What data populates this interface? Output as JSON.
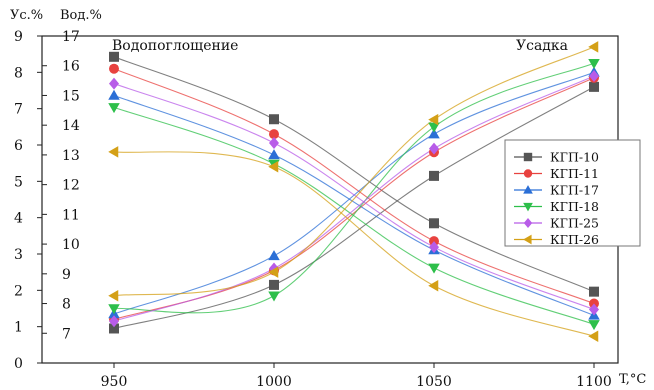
{
  "chart_data": {
    "type": "line",
    "x": [
      950,
      1000,
      1050,
      1100
    ],
    "xlabel": "T,°C",
    "xticks": [
      "950",
      "1000",
      "1050",
      "1100"
    ],
    "xlim": [
      950,
      1100
    ],
    "y_left": {
      "label": "Ус.%",
      "ylim": [
        0,
        9
      ],
      "ticks": [
        "0",
        "1",
        "2",
        "3",
        "4",
        "5",
        "6",
        "7",
        "8",
        "9"
      ]
    },
    "y_right": {
      "label": "Вод.%",
      "ylim": [
        6,
        17
      ],
      "ticks": [
        "7",
        "8",
        "9",
        "10",
        "11",
        "12",
        "13",
        "14",
        "15",
        "16",
        "17"
      ]
    },
    "annotations": {
      "water_absorption": "Водопоглощение",
      "shrinkage": "Усадка"
    },
    "legend_position": "right",
    "series": [
      {
        "name": "КГП-10",
        "color": "#555555",
        "marker": "square",
        "water_absorption": [
          16.3,
          14.2,
          10.7,
          8.4
        ],
        "shrinkage": [
          0.95,
          2.15,
          5.15,
          7.6
        ]
      },
      {
        "name": "КГП-11",
        "color": "#e8423f",
        "marker": "circle",
        "water_absorption": [
          15.9,
          13.7,
          10.1,
          8.0
        ],
        "shrinkage": [
          1.2,
          2.55,
          5.8,
          7.85
        ]
      },
      {
        "name": "КГП-17",
        "color": "#2b6fd6",
        "marker": "triangle-up",
        "water_absorption": [
          15.0,
          13.0,
          9.8,
          7.6
        ],
        "shrinkage": [
          1.35,
          2.95,
          6.3,
          8.0
        ]
      },
      {
        "name": "КГП-18",
        "color": "#2dbf4a",
        "marker": "triangle-down",
        "water_absorption": [
          14.6,
          12.7,
          9.2,
          7.3
        ],
        "shrinkage": [
          1.5,
          1.85,
          6.5,
          8.25
        ]
      },
      {
        "name": "КГП-25",
        "color": "#b85ce8",
        "marker": "diamond",
        "water_absorption": [
          15.4,
          13.4,
          9.9,
          7.8
        ],
        "shrinkage": [
          1.15,
          2.6,
          5.9,
          7.9
        ]
      },
      {
        "name": "КГП-26",
        "color": "#d4a017",
        "marker": "triangle-left",
        "water_absorption": [
          13.1,
          12.6,
          8.6,
          6.9
        ],
        "shrinkage": [
          1.85,
          2.5,
          6.7,
          8.7
        ]
      }
    ]
  }
}
